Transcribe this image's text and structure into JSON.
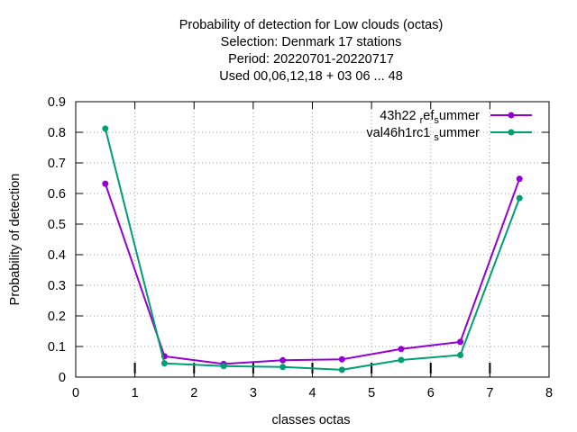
{
  "chart_data": {
    "type": "line",
    "title_lines": [
      "Probability of detection  for Low clouds (octas)",
      "Selection: Denmark      17 stations",
      "Period: 20220701-20220717",
      "Used  00,06,12,18  + 03 06 ... 48"
    ],
    "xlabel": "classes octas",
    "ylabel": "Probability of detection",
    "xlim": [
      0,
      8
    ],
    "ylim": [
      0,
      0.9
    ],
    "x_ticks": [
      "0",
      "1",
      "2",
      "3",
      "4",
      "5",
      "6",
      "7",
      "8"
    ],
    "y_ticks": [
      "0",
      "0.1",
      "0.2",
      "0.3",
      "0.4",
      "0.5",
      "0.6",
      "0.7",
      "0.8",
      "0.9"
    ],
    "grid": true,
    "legend_position": "top-right",
    "x": [
      0.5,
      1.5,
      2.5,
      3.5,
      4.5,
      5.5,
      6.5,
      7.5
    ],
    "series": [
      {
        "name": "43h22 ref summer",
        "legend_parts": [
          "43h22 ",
          "r",
          "ef",
          "s",
          "ummer"
        ],
        "color": "#9400d3",
        "values": [
          0.632,
          0.068,
          0.043,
          0.055,
          0.058,
          0.092,
          0.115,
          0.648
        ]
      },
      {
        "name": "val46h1rc1 summer",
        "legend_parts": [
          "val46h1rc1 ",
          "",
          "",
          "s",
          "ummer"
        ],
        "color": "#009e73",
        "values": [
          0.812,
          0.045,
          0.036,
          0.033,
          0.024,
          0.056,
          0.072,
          0.585
        ]
      }
    ],
    "marker_ticks_x": [
      1,
      2,
      3,
      4,
      5,
      6,
      7
    ]
  }
}
